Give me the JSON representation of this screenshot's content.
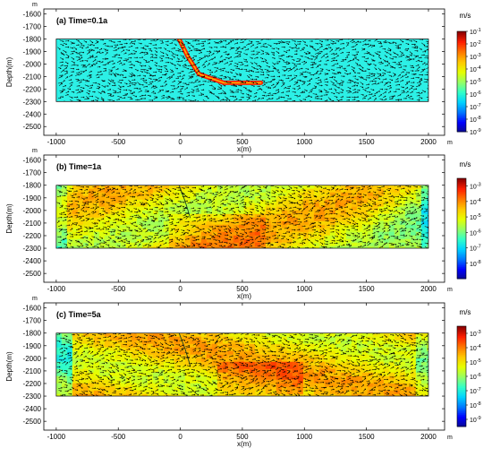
{
  "colors": {
    "matrix": "#2cf0e6",
    "colormap": [
      "#0a0a8c",
      "#0000ff",
      "#0078ff",
      "#00d2ff",
      "#32ffc8",
      "#96ff64",
      "#e6ff00",
      "#ffc800",
      "#ff7800",
      "#ff1e00",
      "#8c0000"
    ]
  },
  "chart_data": [
    {
      "type": "heatmap",
      "panel_label": "(a)  Time=0.1a",
      "xlabel": "x(m)",
      "x_unit": "m",
      "ylabel": "Depth(m)",
      "y_unit": "m",
      "xlim": [
        -1100,
        2130
      ],
      "ylim": [
        -2570,
        -1560
      ],
      "xticks": [
        -1000,
        -500,
        0,
        500,
        1000,
        1500,
        2000
      ],
      "yticks": [
        -1600,
        -1700,
        -1800,
        -1900,
        -2000,
        -2100,
        -2200,
        -2300,
        -2400,
        -2500
      ],
      "domain": {
        "x": [
          -1000,
          2000
        ],
        "depth": [
          -2300,
          -1800
        ]
      },
      "colorbar": {
        "unit": "m/s",
        "exp_max": -1,
        "exp_min": -9,
        "tick_exponents": [
          -1,
          -2,
          -3,
          -4,
          -5,
          -6,
          -7,
          -8,
          -9
        ]
      },
      "background_exponent": -6.5,
      "fault": {
        "path": [
          [
            -10,
            -1800
          ],
          [
            60,
            -1940
          ],
          [
            150,
            -2080
          ],
          [
            350,
            -2150
          ],
          [
            650,
            -2150
          ]
        ],
        "exponent": -1.5
      },
      "field_level": 0
    },
    {
      "type": "heatmap",
      "panel_label": "(b)  Time=1a",
      "xlabel": "x(m)",
      "x_unit": "m",
      "ylabel": "Depth(m)",
      "y_unit": "m",
      "xlim": [
        -1100,
        2130
      ],
      "ylim": [
        -2570,
        -1560
      ],
      "xticks": [
        -1000,
        -500,
        0,
        500,
        1000,
        1500,
        2000
      ],
      "yticks": [
        -1600,
        -1700,
        -1800,
        -1900,
        -2000,
        -2100,
        -2200,
        -2300,
        -2400,
        -2500
      ],
      "domain": {
        "x": [
          -1000,
          2000
        ],
        "depth": [
          -2300,
          -1800
        ]
      },
      "colorbar": {
        "unit": "m/s",
        "exp_max": -2.5,
        "exp_min": -9,
        "tick_exponents": [
          -3,
          -4,
          -5,
          -6,
          -7,
          -8
        ]
      },
      "fault": {
        "path": [
          [
            -10,
            -1800
          ],
          [
            40,
            -1930
          ],
          [
            80,
            -2060
          ]
        ],
        "exponent": -4
      },
      "field_level": 1
    },
    {
      "type": "heatmap",
      "panel_label": "(c)  Time=5a",
      "xlabel": "x(m)",
      "x_unit": "m",
      "ylabel": "Depth(m)",
      "y_unit": "m",
      "xlim": [
        -1100,
        2130
      ],
      "ylim": [
        -2570,
        -1560
      ],
      "xticks": [
        -1000,
        -500,
        0,
        500,
        1000,
        1500,
        2000
      ],
      "yticks": [
        -1600,
        -1700,
        -1800,
        -1900,
        -2000,
        -2100,
        -2200,
        -2300,
        -2400,
        -2500
      ],
      "domain": {
        "x": [
          -1000,
          2000
        ],
        "depth": [
          -2300,
          -1800
        ]
      },
      "colorbar": {
        "unit": "m/s",
        "exp_max": -2.5,
        "exp_min": -9.5,
        "tick_exponents": [
          -3,
          -4,
          -5,
          -6,
          -7,
          -8,
          -9
        ]
      },
      "fault": {
        "path": [
          [
            -10,
            -1800
          ],
          [
            40,
            -1930
          ],
          [
            80,
            -2060
          ]
        ],
        "exponent": -4
      },
      "field_level": 2
    }
  ]
}
